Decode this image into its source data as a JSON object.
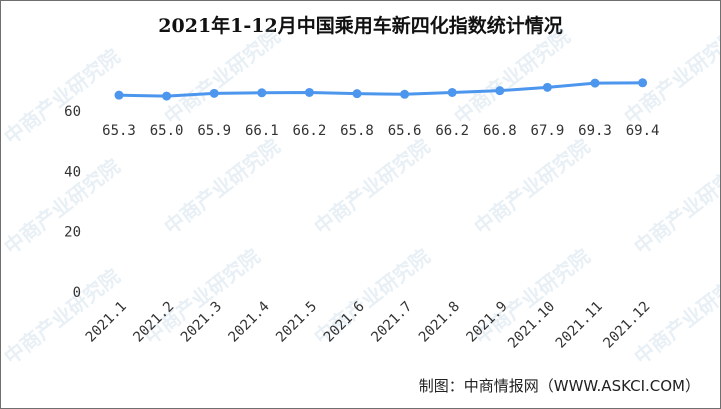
{
  "watermark": "中商产业研究院",
  "source": "制图：中商情报网（WWW.ASKCI.COM）",
  "colors": {
    "line": "#4d96ee",
    "marker": "#4d96ee"
  },
  "chart_data": {
    "type": "line",
    "title": "2021年1-12月中国乘用车新四化指数统计情况",
    "categories": [
      "2021.1",
      "2021.2",
      "2021.3",
      "2021.4",
      "2021.5",
      "2021.6",
      "2021.7",
      "2021.8",
      "2021.9",
      "2021.10",
      "2021.11",
      "2021.12"
    ],
    "values": [
      65.3,
      65.0,
      65.9,
      66.1,
      66.2,
      65.8,
      65.6,
      66.2,
      66.8,
      67.9,
      69.3,
      69.4
    ],
    "data_labels": [
      "65.3",
      "65.0",
      "65.9",
      "66.1",
      "66.2",
      "65.8",
      "65.6",
      "66.2",
      "66.8",
      "67.9",
      "69.3",
      "69.4"
    ],
    "yticks": [
      0,
      20,
      40,
      60
    ],
    "ylim": [
      0,
      70
    ],
    "xlabel": "",
    "ylabel": "",
    "grid": false,
    "legend": "none"
  }
}
